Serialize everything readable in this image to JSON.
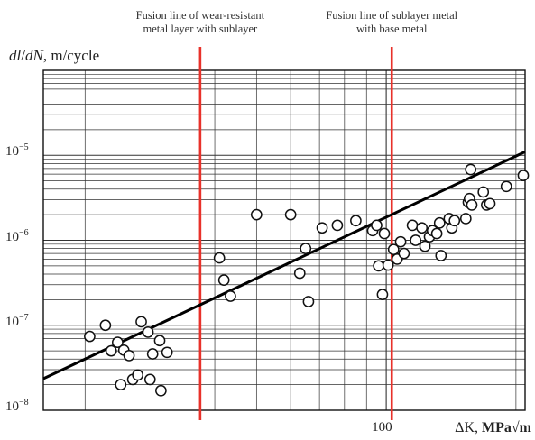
{
  "chart_data": {
    "type": "scatter",
    "title": "",
    "xlabel": "ΔK, MPa√m",
    "xlabel_parts": {
      "symbol": "ΔK,",
      "unit": "MPa√m"
    },
    "ylabel": "dl/dN, m/cycle",
    "ylabel_parts": {
      "numer": "dl",
      "denom": "dN",
      "unit": ", m/cycle"
    },
    "x_scale": "log",
    "y_scale": "log",
    "xlim": [
      16,
      210
    ],
    "ylim": [
      1e-08,
      0.0001
    ],
    "grid": true,
    "x_tick_labels": [
      {
        "value": 100,
        "label": "100"
      }
    ],
    "y_tick_labels": [
      {
        "value": 1e-08,
        "base": "10",
        "exp": "−8"
      },
      {
        "value": 1e-07,
        "base": "10",
        "exp": "−7"
      },
      {
        "value": 1e-06,
        "base": "10",
        "exp": "−6"
      },
      {
        "value": 1e-05,
        "base": "10",
        "exp": "−5"
      }
    ],
    "vertical_lines": [
      {
        "x": 37,
        "color": "#e8312a",
        "label_lines": [
          "Fusion line of wear-resistant",
          "metal layer with sublayer"
        ]
      },
      {
        "x": 103,
        "color": "#e8312a",
        "label_lines": [
          "Fusion line of sublayer metal",
          "with base metal"
        ]
      }
    ],
    "trend_line": {
      "x1": 16,
      "y1": 2.35e-08,
      "x2": 210,
      "y2": 1.1e-05,
      "color": "#000000"
    },
    "points": [
      [
        20.5,
        7.4e-08
      ],
      [
        22.3,
        1e-07
      ],
      [
        23.0,
        5e-08
      ],
      [
        23.8,
        6.3e-08
      ],
      [
        24.6,
        5.1e-08
      ],
      [
        25.3,
        4.4e-08
      ],
      [
        24.2,
        2e-08
      ],
      [
        25.8,
        2.3e-08
      ],
      [
        26.5,
        2.6e-08
      ],
      [
        27.0,
        1.1e-07
      ],
      [
        28.0,
        8.3e-08
      ],
      [
        28.7,
        4.6e-08
      ],
      [
        28.3,
        2.3e-08
      ],
      [
        29.8,
        6.6e-08
      ],
      [
        31.0,
        4.8e-08
      ],
      [
        30.0,
        1.7e-08
      ],
      [
        41.0,
        6.2e-07
      ],
      [
        42.0,
        3.4e-07
      ],
      [
        43.5,
        2.2e-07
      ],
      [
        50.0,
        2e-06
      ],
      [
        60.0,
        2e-06
      ],
      [
        63.0,
        4.1e-07
      ],
      [
        65.0,
        8e-07
      ],
      [
        66.0,
        1.9e-07
      ],
      [
        71.0,
        1.4e-06
      ],
      [
        77.0,
        1.5e-06
      ],
      [
        85.0,
        1.7e-06
      ],
      [
        93.0,
        1.3e-06
      ],
      [
        95.0,
        1.5e-06
      ],
      [
        96.0,
        5e-07
      ],
      [
        98.0,
        2.3e-07
      ],
      [
        99.0,
        1.2e-06
      ],
      [
        101.0,
        5.1e-07
      ],
      [
        104.0,
        7.8e-07
      ],
      [
        106.0,
        6e-07
      ],
      [
        108.0,
        9.6e-07
      ],
      [
        110.0,
        7e-07
      ],
      [
        115.0,
        1.5e-06
      ],
      [
        117.0,
        1e-06
      ],
      [
        121.0,
        1.4e-06
      ],
      [
        123.0,
        8.5e-07
      ],
      [
        126.0,
        1.1e-06
      ],
      [
        128.0,
        1.3e-06
      ],
      [
        131.0,
        1.2e-06
      ],
      [
        133.0,
        1.6e-06
      ],
      [
        134.0,
        6.6e-07
      ],
      [
        140.0,
        1.8e-06
      ],
      [
        142.0,
        1.4e-06
      ],
      [
        144.0,
        1.7e-06
      ],
      [
        153.0,
        1.8e-06
      ],
      [
        155.0,
        2.8e-06
      ],
      [
        156.0,
        3.1e-06
      ],
      [
        157.0,
        6.8e-06
      ],
      [
        158.0,
        2.6e-06
      ],
      [
        168.0,
        3.7e-06
      ],
      [
        171.0,
        2.6e-06
      ],
      [
        174.0,
        2.7e-06
      ],
      [
        190.0,
        4.3e-06
      ],
      [
        208.0,
        5.8e-06
      ]
    ]
  }
}
